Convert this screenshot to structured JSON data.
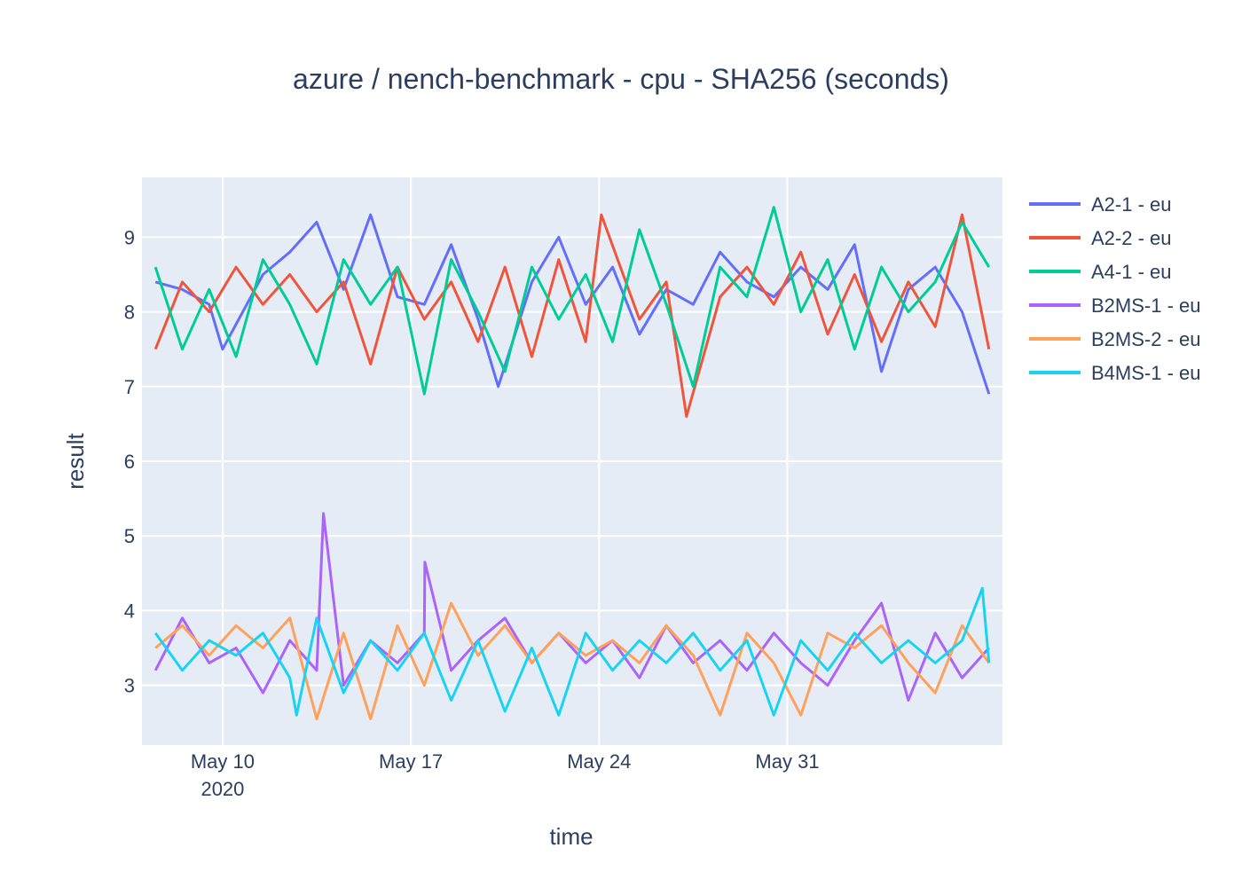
{
  "chart_data": {
    "type": "line",
    "title": "azure / nench-benchmark - cpu - SHA256 (seconds)",
    "xlabel": "time",
    "ylabel": "result",
    "x_axis": {
      "range": [
        "2020-05-07",
        "2020-06-08"
      ],
      "ticks": [
        {
          "value": "2020-05-10",
          "label": "May 10",
          "sublabel": "2020"
        },
        {
          "value": "2020-05-17",
          "label": "May 17",
          "sublabel": ""
        },
        {
          "value": "2020-05-24",
          "label": "May 24",
          "sublabel": ""
        },
        {
          "value": "2020-05-31",
          "label": "May 31",
          "sublabel": ""
        }
      ]
    },
    "y_axis": {
      "range": [
        2.2,
        9.8
      ],
      "ticks": [
        3,
        4,
        5,
        6,
        7,
        8,
        9
      ]
    },
    "grid": true,
    "legend_position": "top-right",
    "series": [
      {
        "name": "A2-1 - eu",
        "color": "#636efa",
        "points": [
          [
            "2020-05-07T12:00",
            8.4
          ],
          [
            "2020-05-08T12:00",
            8.3
          ],
          [
            "2020-05-09T12:00",
            8.1
          ],
          [
            "2020-05-10T00:00",
            7.5
          ],
          [
            "2020-05-11T12:00",
            8.5
          ],
          [
            "2020-05-12T12:00",
            8.8
          ],
          [
            "2020-05-13T12:00",
            9.2
          ],
          [
            "2020-05-14T12:00",
            8.3
          ],
          [
            "2020-05-15T12:00",
            9.3
          ],
          [
            "2020-05-16T12:00",
            8.2
          ],
          [
            "2020-05-17T12:00",
            8.1
          ],
          [
            "2020-05-18T12:00",
            8.9
          ],
          [
            "2020-05-19T12:00",
            7.9
          ],
          [
            "2020-05-20T06:00",
            7.0
          ],
          [
            "2020-05-21T12:00",
            8.4
          ],
          [
            "2020-05-22T12:00",
            9.0
          ],
          [
            "2020-05-23T12:00",
            8.1
          ],
          [
            "2020-05-24T12:00",
            8.6
          ],
          [
            "2020-05-25T12:00",
            7.7
          ],
          [
            "2020-05-26T12:00",
            8.3
          ],
          [
            "2020-05-27T12:00",
            8.1
          ],
          [
            "2020-05-28T12:00",
            8.8
          ],
          [
            "2020-05-29T12:00",
            8.4
          ],
          [
            "2020-05-30T12:00",
            8.2
          ],
          [
            "2020-05-31T12:00",
            8.6
          ],
          [
            "2020-06-01T12:00",
            8.3
          ],
          [
            "2020-06-02T12:00",
            8.9
          ],
          [
            "2020-06-03T12:00",
            7.2
          ],
          [
            "2020-06-04T12:00",
            8.3
          ],
          [
            "2020-06-05T12:00",
            8.6
          ],
          [
            "2020-06-06T12:00",
            8.0
          ],
          [
            "2020-06-07T12:00",
            6.9
          ]
        ]
      },
      {
        "name": "A2-2 - eu",
        "color": "#ef553b",
        "points": [
          [
            "2020-05-07T12:00",
            7.5
          ],
          [
            "2020-05-08T12:00",
            8.4
          ],
          [
            "2020-05-09T12:00",
            8.0
          ],
          [
            "2020-05-10T12:00",
            8.6
          ],
          [
            "2020-05-11T12:00",
            8.1
          ],
          [
            "2020-05-12T12:00",
            8.5
          ],
          [
            "2020-05-13T12:00",
            8.0
          ],
          [
            "2020-05-14T12:00",
            8.4
          ],
          [
            "2020-05-15T12:00",
            7.3
          ],
          [
            "2020-05-16T12:00",
            8.6
          ],
          [
            "2020-05-17T12:00",
            7.9
          ],
          [
            "2020-05-18T12:00",
            8.4
          ],
          [
            "2020-05-19T12:00",
            7.6
          ],
          [
            "2020-05-20T12:00",
            8.6
          ],
          [
            "2020-05-21T12:00",
            7.4
          ],
          [
            "2020-05-22T12:00",
            8.7
          ],
          [
            "2020-05-23T12:00",
            7.6
          ],
          [
            "2020-05-24T02:00",
            9.3
          ],
          [
            "2020-05-25T12:00",
            7.9
          ],
          [
            "2020-05-26T12:00",
            8.4
          ],
          [
            "2020-05-27T06:00",
            6.6
          ],
          [
            "2020-05-28T12:00",
            8.2
          ],
          [
            "2020-05-29T12:00",
            8.6
          ],
          [
            "2020-05-30T12:00",
            8.1
          ],
          [
            "2020-05-31T12:00",
            8.8
          ],
          [
            "2020-06-01T12:00",
            7.7
          ],
          [
            "2020-06-02T12:00",
            8.5
          ],
          [
            "2020-06-03T12:00",
            7.6
          ],
          [
            "2020-06-04T12:00",
            8.4
          ],
          [
            "2020-06-05T12:00",
            7.8
          ],
          [
            "2020-06-06T12:00",
            9.3
          ],
          [
            "2020-06-07T12:00",
            7.5
          ]
        ]
      },
      {
        "name": "A4-1 - eu",
        "color": "#00cc96",
        "points": [
          [
            "2020-05-07T12:00",
            8.6
          ],
          [
            "2020-05-08T12:00",
            7.5
          ],
          [
            "2020-05-09T12:00",
            8.3
          ],
          [
            "2020-05-10T12:00",
            7.4
          ],
          [
            "2020-05-11T12:00",
            8.7
          ],
          [
            "2020-05-12T12:00",
            8.1
          ],
          [
            "2020-05-13T12:00",
            7.3
          ],
          [
            "2020-05-14T12:00",
            8.7
          ],
          [
            "2020-05-15T12:00",
            8.1
          ],
          [
            "2020-05-16T12:00",
            8.6
          ],
          [
            "2020-05-17T12:00",
            6.9
          ],
          [
            "2020-05-18T12:00",
            8.7
          ],
          [
            "2020-05-19T12:00",
            8.0
          ],
          [
            "2020-05-20T12:00",
            7.2
          ],
          [
            "2020-05-21T12:00",
            8.6
          ],
          [
            "2020-05-22T12:00",
            7.9
          ],
          [
            "2020-05-23T12:00",
            8.5
          ],
          [
            "2020-05-24T12:00",
            7.6
          ],
          [
            "2020-05-25T12:00",
            9.1
          ],
          [
            "2020-05-26T12:00",
            8.1
          ],
          [
            "2020-05-27T12:00",
            7.0
          ],
          [
            "2020-05-28T12:00",
            8.6
          ],
          [
            "2020-05-29T12:00",
            8.2
          ],
          [
            "2020-05-30T12:00",
            9.4
          ],
          [
            "2020-05-31T12:00",
            8.0
          ],
          [
            "2020-06-01T12:00",
            8.7
          ],
          [
            "2020-06-02T12:00",
            7.5
          ],
          [
            "2020-06-03T12:00",
            8.6
          ],
          [
            "2020-06-04T12:00",
            8.0
          ],
          [
            "2020-06-05T12:00",
            8.4
          ],
          [
            "2020-06-06T12:00",
            9.2
          ],
          [
            "2020-06-07T12:00",
            8.6
          ]
        ]
      },
      {
        "name": "B2MS-1 - eu",
        "color": "#ab63fa",
        "points": [
          [
            "2020-05-07T12:00",
            3.2
          ],
          [
            "2020-05-08T12:00",
            3.9
          ],
          [
            "2020-05-09T12:00",
            3.3
          ],
          [
            "2020-05-10T12:00",
            3.5
          ],
          [
            "2020-05-11T12:00",
            2.9
          ],
          [
            "2020-05-12T12:00",
            3.6
          ],
          [
            "2020-05-13T12:00",
            3.2
          ],
          [
            "2020-05-13T18:00",
            5.3
          ],
          [
            "2020-05-14T12:00",
            3.0
          ],
          [
            "2020-05-15T12:00",
            3.6
          ],
          [
            "2020-05-16T12:00",
            3.3
          ],
          [
            "2020-05-17T12:00",
            3.7
          ],
          [
            "2020-05-17T12:30",
            4.65
          ],
          [
            "2020-05-18T12:00",
            3.2
          ],
          [
            "2020-05-19T12:00",
            3.6
          ],
          [
            "2020-05-20T12:00",
            3.9
          ],
          [
            "2020-05-21T12:00",
            3.3
          ],
          [
            "2020-05-22T12:00",
            3.7
          ],
          [
            "2020-05-23T12:00",
            3.3
          ],
          [
            "2020-05-24T12:00",
            3.6
          ],
          [
            "2020-05-25T12:00",
            3.1
          ],
          [
            "2020-05-26T12:00",
            3.8
          ],
          [
            "2020-05-27T12:00",
            3.3
          ],
          [
            "2020-05-28T12:00",
            3.6
          ],
          [
            "2020-05-29T12:00",
            3.2
          ],
          [
            "2020-05-30T12:00",
            3.7
          ],
          [
            "2020-05-31T12:00",
            3.3
          ],
          [
            "2020-06-01T12:00",
            3.0
          ],
          [
            "2020-06-02T12:00",
            3.6
          ],
          [
            "2020-06-03T12:00",
            4.1
          ],
          [
            "2020-06-04T12:00",
            2.8
          ],
          [
            "2020-06-05T12:00",
            3.7
          ],
          [
            "2020-06-06T12:00",
            3.1
          ],
          [
            "2020-06-07T12:00",
            3.5
          ]
        ]
      },
      {
        "name": "B2MS-2 - eu",
        "color": "#ffa15a",
        "points": [
          [
            "2020-05-07T12:00",
            3.5
          ],
          [
            "2020-05-08T12:00",
            3.8
          ],
          [
            "2020-05-09T12:00",
            3.4
          ],
          [
            "2020-05-10T12:00",
            3.8
          ],
          [
            "2020-05-11T12:00",
            3.5
          ],
          [
            "2020-05-12T12:00",
            3.9
          ],
          [
            "2020-05-13T12:00",
            2.55
          ],
          [
            "2020-05-14T12:00",
            3.7
          ],
          [
            "2020-05-15T12:00",
            2.55
          ],
          [
            "2020-05-16T12:00",
            3.8
          ],
          [
            "2020-05-17T12:00",
            3.0
          ],
          [
            "2020-05-18T12:00",
            4.1
          ],
          [
            "2020-05-19T12:00",
            3.4
          ],
          [
            "2020-05-20T12:00",
            3.8
          ],
          [
            "2020-05-21T12:00",
            3.3
          ],
          [
            "2020-05-22T12:00",
            3.7
          ],
          [
            "2020-05-23T12:00",
            3.4
          ],
          [
            "2020-05-24T12:00",
            3.6
          ],
          [
            "2020-05-25T12:00",
            3.3
          ],
          [
            "2020-05-26T12:00",
            3.8
          ],
          [
            "2020-05-27T12:00",
            3.4
          ],
          [
            "2020-05-28T12:00",
            2.6
          ],
          [
            "2020-05-29T12:00",
            3.7
          ],
          [
            "2020-05-30T12:00",
            3.3
          ],
          [
            "2020-05-31T12:00",
            2.6
          ],
          [
            "2020-06-01T12:00",
            3.7
          ],
          [
            "2020-06-02T12:00",
            3.5
          ],
          [
            "2020-06-03T12:00",
            3.8
          ],
          [
            "2020-06-04T12:00",
            3.3
          ],
          [
            "2020-06-05T12:00",
            2.9
          ],
          [
            "2020-06-06T12:00",
            3.8
          ],
          [
            "2020-06-07T12:00",
            3.3
          ]
        ]
      },
      {
        "name": "B4MS-1 - eu",
        "color": "#19d3f3",
        "points": [
          [
            "2020-05-07T12:00",
            3.7
          ],
          [
            "2020-05-08T12:00",
            3.2
          ],
          [
            "2020-05-09T12:00",
            3.6
          ],
          [
            "2020-05-10T12:00",
            3.4
          ],
          [
            "2020-05-11T12:00",
            3.7
          ],
          [
            "2020-05-12T12:00",
            3.1
          ],
          [
            "2020-05-12T18:00",
            2.6
          ],
          [
            "2020-05-13T12:00",
            3.9
          ],
          [
            "2020-05-14T12:00",
            2.9
          ],
          [
            "2020-05-15T12:00",
            3.6
          ],
          [
            "2020-05-16T12:00",
            3.2
          ],
          [
            "2020-05-17T12:00",
            3.7
          ],
          [
            "2020-05-18T12:00",
            2.8
          ],
          [
            "2020-05-19T12:00",
            3.6
          ],
          [
            "2020-05-20T12:00",
            2.65
          ],
          [
            "2020-05-21T12:00",
            3.5
          ],
          [
            "2020-05-22T12:00",
            2.6
          ],
          [
            "2020-05-23T12:00",
            3.7
          ],
          [
            "2020-05-24T12:00",
            3.2
          ],
          [
            "2020-05-25T12:00",
            3.6
          ],
          [
            "2020-05-26T12:00",
            3.3
          ],
          [
            "2020-05-27T12:00",
            3.7
          ],
          [
            "2020-05-28T12:00",
            3.2
          ],
          [
            "2020-05-29T12:00",
            3.6
          ],
          [
            "2020-05-30T12:00",
            2.6
          ],
          [
            "2020-05-31T12:00",
            3.6
          ],
          [
            "2020-06-01T12:00",
            3.2
          ],
          [
            "2020-06-02T12:00",
            3.7
          ],
          [
            "2020-06-03T12:00",
            3.3
          ],
          [
            "2020-06-04T12:00",
            3.6
          ],
          [
            "2020-06-05T12:00",
            3.3
          ],
          [
            "2020-06-06T12:00",
            3.6
          ],
          [
            "2020-06-07T06:00",
            4.3
          ],
          [
            "2020-06-07T12:00",
            3.3
          ]
        ]
      }
    ]
  }
}
